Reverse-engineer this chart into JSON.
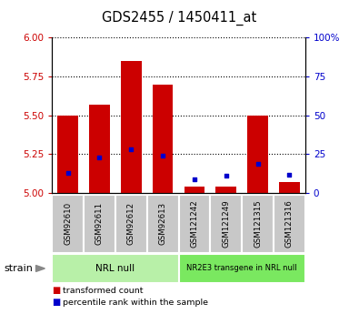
{
  "title": "GDS2455 / 1450411_at",
  "samples": [
    "GSM92610",
    "GSM92611",
    "GSM92612",
    "GSM92613",
    "GSM121242",
    "GSM121249",
    "GSM121315",
    "GSM121316"
  ],
  "transformed_counts": [
    5.5,
    5.57,
    5.85,
    5.7,
    5.04,
    5.04,
    5.5,
    5.07
  ],
  "percentile_ranks": [
    5.13,
    5.23,
    5.28,
    5.24,
    5.09,
    5.11,
    5.19,
    5.12
  ],
  "groups": [
    {
      "label": "NRL null",
      "indices": [
        0,
        1,
        2,
        3
      ],
      "color": "#b8f0a8"
    },
    {
      "label": "NR2E3 transgene in NRL null",
      "indices": [
        4,
        5,
        6,
        7
      ],
      "color": "#7ae860"
    }
  ],
  "ylim_left": [
    5.0,
    6.0
  ],
  "ylim_right": [
    0,
    100
  ],
  "yticks_left": [
    5.0,
    5.25,
    5.5,
    5.75,
    6.0
  ],
  "yticks_right": [
    0,
    25,
    50,
    75,
    100
  ],
  "bar_color": "#cc0000",
  "dot_color": "#0000cc",
  "left_tick_color": "#cc0000",
  "right_tick_color": "#0000cc",
  "background_plot": "#ffffff",
  "background_label": "#c8c8c8",
  "strain_label": "strain",
  "legend_items": [
    {
      "color": "#cc0000",
      "label": "transformed count"
    },
    {
      "color": "#0000cc",
      "label": "percentile rank within the sample"
    }
  ]
}
